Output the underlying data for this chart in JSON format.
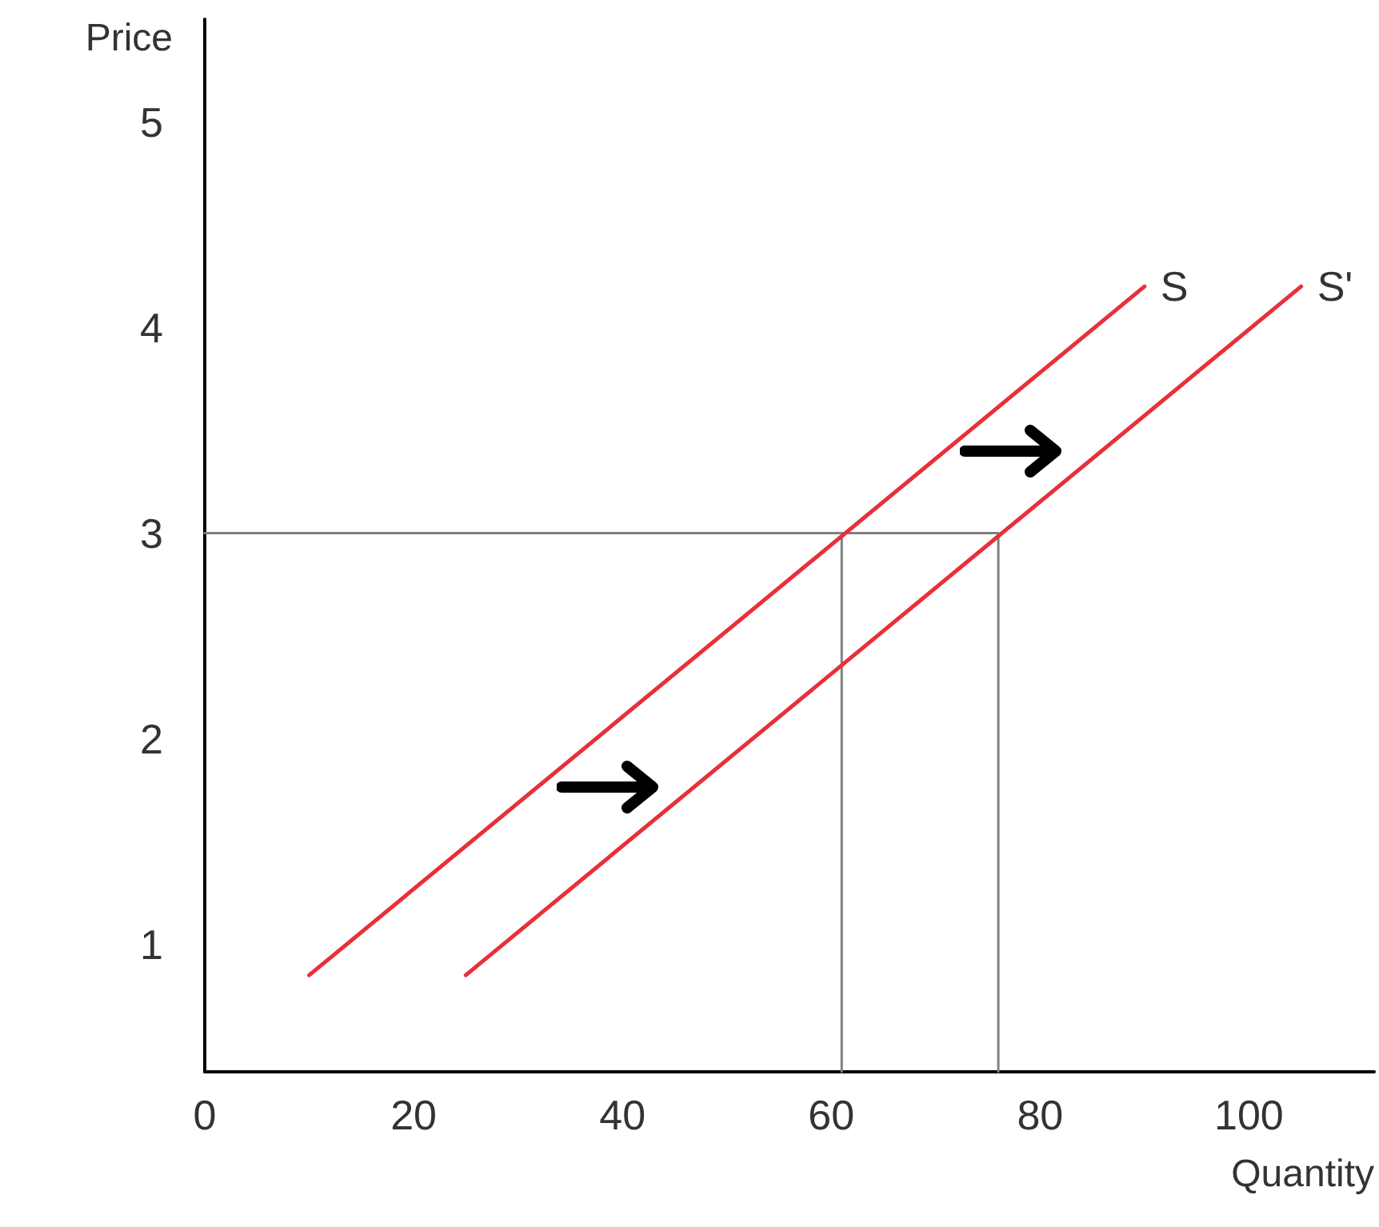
{
  "chart_data": {
    "type": "line",
    "xlabel": "Quantity",
    "ylabel": "Price",
    "xlim": [
      0,
      112
    ],
    "xticks": [
      0,
      20,
      40,
      60,
      80,
      100
    ],
    "ylim": [
      0.38,
      5.5
    ],
    "yticks": [
      1,
      2,
      3,
      4,
      5
    ],
    "grid": false,
    "legend": false,
    "marker": "none",
    "line_style": "solid",
    "series": [
      {
        "name": "S",
        "color": "#e8303a",
        "x": [
          10,
          90
        ],
        "values": [
          0.85,
          4.2
        ]
      },
      {
        "name": "S'",
        "color": "#e8303a",
        "x": [
          25,
          105
        ],
        "values": [
          0.85,
          4.2
        ]
      },
      {
        "color": "#808080",
        "x": [
          0,
          76
        ],
        "values": [
          3,
          3
        ]
      },
      {
        "color": "#808080",
        "x": [
          61,
          61
        ],
        "values": [
          0.38,
          3
        ]
      },
      {
        "color": "#808080",
        "x": [
          76,
          76
        ],
        "values": [
          0.38,
          3
        ]
      }
    ]
  }
}
